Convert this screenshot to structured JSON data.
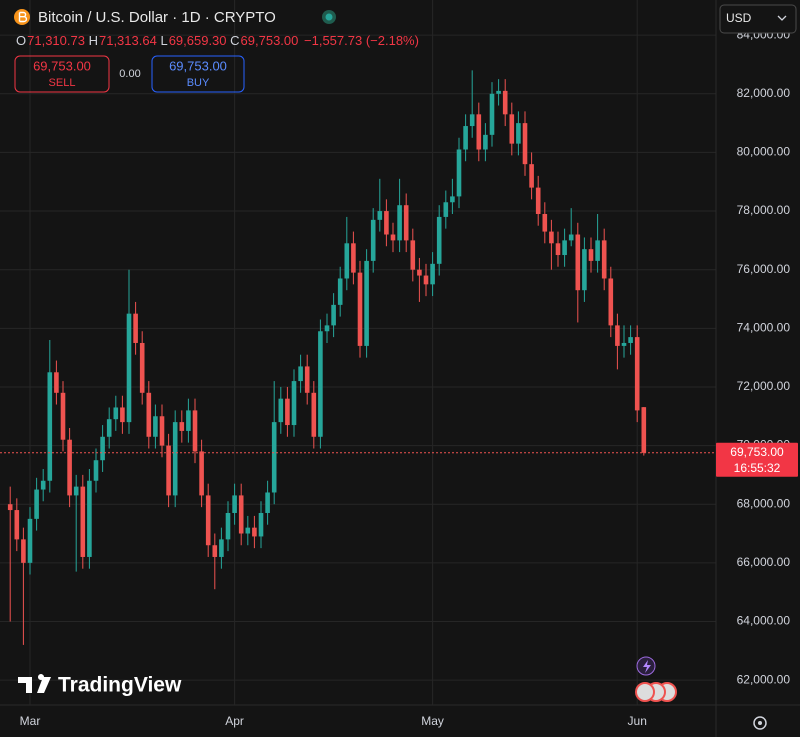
{
  "chart_data": {
    "type": "candlestick",
    "title": "Bitcoin / U.S. Dollar · 1D · CRYPTO",
    "ohlc_header": [
      {
        "key": "O",
        "value": "71,310.73"
      },
      {
        "key": "H",
        "value": "71,313.64"
      },
      {
        "key": "L",
        "value": "69,659.30"
      },
      {
        "key": "C",
        "value": "69,753.00"
      }
    ],
    "change": "−1,557.73 (−2.18%)",
    "sell": {
      "price": "69,753.00",
      "label": "SELL"
    },
    "spread": "0.00",
    "buy": {
      "price": "69,753.00",
      "label": "BUY"
    },
    "currency": "USD",
    "logo": "TradingView",
    "price_line": {
      "value": 69753,
      "label": "69,753.00",
      "countdown": "16:55:32"
    },
    "up_color": "#26a69a",
    "down_color": "#ef5350",
    "grid": true,
    "categories": [
      null,
      null,
      null,
      "Mar",
      null,
      null,
      null,
      null,
      null,
      null,
      null,
      null,
      null,
      null,
      null,
      null,
      null,
      null,
      null,
      null,
      null,
      null,
      null,
      null,
      null,
      null,
      null,
      null,
      null,
      null,
      null,
      null,
      null,
      null,
      "Apr",
      null,
      null,
      null,
      null,
      null,
      null,
      null,
      null,
      null,
      null,
      null,
      null,
      null,
      null,
      null,
      null,
      null,
      null,
      null,
      null,
      null,
      null,
      null,
      null,
      null,
      null,
      null,
      null,
      null,
      "May",
      null,
      null,
      null,
      null,
      null,
      null,
      null,
      null,
      null,
      null,
      null,
      null,
      null,
      null,
      null,
      null,
      null,
      null,
      null,
      null,
      null,
      null,
      null,
      null,
      null,
      null,
      null,
      null,
      null,
      null,
      "Jun",
      null
    ],
    "open": [
      68000,
      67800,
      66800,
      66000,
      67500,
      68500,
      68800,
      72500,
      71800,
      70200,
      68300,
      68600,
      66200,
      68800,
      69500,
      70300,
      70900,
      71300,
      70800,
      74500,
      73500,
      71800,
      70300,
      71000,
      70000,
      68300,
      70800,
      70500,
      71200,
      69800,
      68300,
      66600,
      66200,
      66800,
      67700,
      68300,
      67000,
      67200,
      66900,
      67700,
      68400,
      70800,
      71600,
      70700,
      72200,
      72700,
      71800,
      70300,
      73900,
      74100,
      74800,
      75700,
      76900,
      75900,
      73400,
      76300,
      77700,
      78000,
      77200,
      77000,
      78200,
      77000,
      76000,
      75800,
      75500,
      76200,
      77800,
      78300,
      78500,
      80100,
      80900,
      81300,
      80100,
      80600,
      82000,
      82100,
      81300,
      80300,
      81000,
      79600,
      78800,
      77900,
      77300,
      76900,
      76500,
      77000,
      77200,
      75300,
      76700,
      76300,
      77000,
      75700,
      74100,
      73400,
      73500,
      73700,
      71310.73
    ],
    "high": [
      68600,
      68200,
      67200,
      67900,
      68900,
      69200,
      73600,
      72900,
      72200,
      70600,
      69000,
      69000,
      69200,
      69900,
      70700,
      71300,
      71700,
      71700,
      76000,
      74900,
      73900,
      72200,
      71400,
      71400,
      70400,
      71200,
      71200,
      71600,
      71600,
      70200,
      68700,
      67000,
      67200,
      68100,
      68700,
      68700,
      67600,
      67600,
      68100,
      68800,
      72200,
      72000,
      72000,
      72600,
      73100,
      73100,
      72200,
      74300,
      74500,
      75200,
      76100,
      77800,
      77300,
      76300,
      76700,
      78100,
      79100,
      78400,
      77600,
      79100,
      78600,
      77400,
      76400,
      76200,
      76600,
      78200,
      78700,
      79100,
      80500,
      81300,
      82800,
      81700,
      81000,
      82400,
      82500,
      82500,
      81700,
      81400,
      81400,
      80000,
      79200,
      78300,
      77700,
      77300,
      77400,
      78100,
      77600,
      77100,
      77100,
      77900,
      77400,
      76100,
      74500,
      74100,
      74100,
      74100,
      71313.64
    ],
    "low": [
      64000,
      66400,
      63200,
      65600,
      67100,
      68100,
      68400,
      71400,
      69800,
      67900,
      65700,
      65800,
      65800,
      68400,
      69100,
      69900,
      70500,
      70400,
      70400,
      73100,
      71400,
      69900,
      69900,
      69600,
      67900,
      67900,
      70100,
      70100,
      69400,
      67900,
      66200,
      65100,
      65800,
      66400,
      67300,
      66600,
      66600,
      66500,
      66500,
      67300,
      68000,
      70400,
      70300,
      70300,
      71800,
      71400,
      69900,
      69900,
      73500,
      73700,
      74400,
      75300,
      75500,
      73000,
      73000,
      75900,
      77300,
      76800,
      76600,
      76600,
      76600,
      75600,
      74900,
      75100,
      75100,
      75800,
      77400,
      77900,
      78100,
      79700,
      80500,
      79700,
      79700,
      80200,
      81600,
      80900,
      79900,
      79900,
      79200,
      78400,
      77500,
      76900,
      76000,
      76100,
      76100,
      76800,
      74200,
      74900,
      75900,
      75900,
      75300,
      73700,
      72600,
      73000,
      73100,
      70800,
      69659.3
    ],
    "close": [
      67800,
      66800,
      66000,
      67500,
      68500,
      68800,
      72500,
      71800,
      70200,
      68300,
      68600,
      66200,
      68800,
      69500,
      70300,
      70900,
      71300,
      70800,
      74500,
      73500,
      71800,
      70300,
      71000,
      70000,
      68300,
      70800,
      70500,
      71200,
      69800,
      68300,
      66600,
      66200,
      66800,
      67700,
      68300,
      67000,
      67200,
      66900,
      67700,
      68400,
      70800,
      71600,
      70700,
      72200,
      72700,
      71800,
      70300,
      73900,
      74100,
      74800,
      75700,
      76900,
      75900,
      73400,
      76300,
      77700,
      78000,
      77200,
      77000,
      78200,
      77000,
      76000,
      75800,
      75500,
      76200,
      77800,
      78300,
      78500,
      80100,
      80900,
      81300,
      80100,
      80600,
      82000,
      82100,
      81300,
      80300,
      81000,
      79600,
      78800,
      77900,
      77300,
      76900,
      76500,
      77000,
      77200,
      75300,
      76700,
      76300,
      77000,
      75700,
      74100,
      73400,
      73500,
      73700,
      71200,
      69753
    ],
    "ylim": [
      61150,
      85200
    ],
    "yticks": [
      {
        "value": 62000,
        "label": "62,000.00"
      },
      {
        "value": 64000,
        "label": "64,000.00"
      },
      {
        "value": 66000,
        "label": "66,000.00"
      },
      {
        "value": 68000,
        "label": "68,000.00"
      },
      {
        "value": 70000,
        "label": "70,000.00"
      },
      {
        "value": 72000,
        "label": "72,000.00"
      },
      {
        "value": 74000,
        "label": "74,000.00"
      },
      {
        "value": 76000,
        "label": "76,000.00"
      },
      {
        "value": 78000,
        "label": "78,000.00"
      },
      {
        "value": 80000,
        "label": "80,000.00"
      },
      {
        "value": 82000,
        "label": "82,000.00"
      },
      {
        "value": 84000,
        "label": "84,000.00"
      }
    ]
  }
}
